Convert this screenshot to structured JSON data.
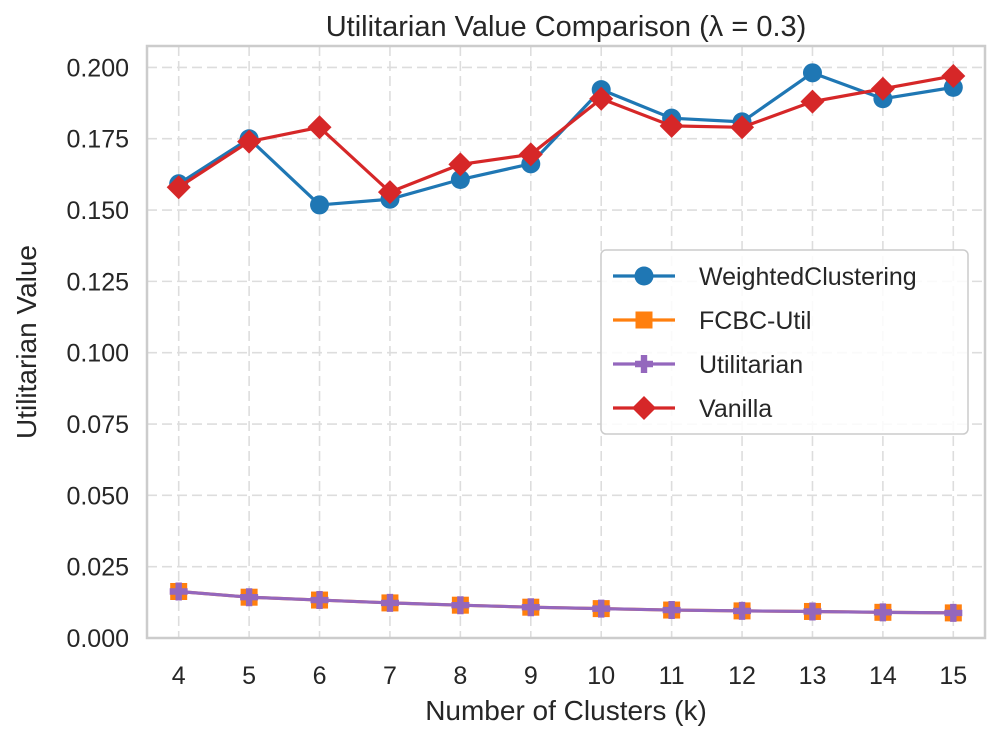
{
  "chart_data": {
    "type": "line",
    "title": "Utilitarian Value Comparison (λ = 0.3)",
    "xlabel": "Number of Clusters (k)",
    "ylabel": "Utilitarian Value",
    "x": [
      4,
      5,
      6,
      7,
      8,
      9,
      10,
      11,
      12,
      13,
      14,
      15
    ],
    "xlim": [
      3.55,
      15.45
    ],
    "ylim": [
      0.0,
      0.2075
    ],
    "yticks": [
      0.0,
      0.025,
      0.05,
      0.075,
      0.1,
      0.125,
      0.15,
      0.175,
      0.2
    ],
    "ytick_labels": [
      "0.000",
      "0.025",
      "0.050",
      "0.075",
      "0.100",
      "0.125",
      "0.150",
      "0.175",
      "0.200"
    ],
    "xtick_labels": [
      "4",
      "5",
      "6",
      "7",
      "8",
      "9",
      "10",
      "11",
      "12",
      "13",
      "14",
      "15"
    ],
    "grid": true,
    "legend_position": "center-right",
    "series": [
      {
        "name": "WeightedClustering",
        "color": "#1f77b4",
        "marker": "circle",
        "values": [
          0.1592,
          0.175,
          0.1518,
          0.1538,
          0.1607,
          0.1662,
          0.1922,
          0.1822,
          0.1809,
          0.1981,
          0.189,
          0.193
        ]
      },
      {
        "name": "FCBC-Util",
        "color": "#ff7f0e",
        "marker": "square",
        "values": [
          0.0163,
          0.0143,
          0.0133,
          0.0123,
          0.0115,
          0.0108,
          0.0103,
          0.0098,
          0.0095,
          0.0093,
          0.009,
          0.0088
        ]
      },
      {
        "name": "Utilitarian",
        "color": "#9467bd",
        "marker": "plus",
        "values": [
          0.0163,
          0.0143,
          0.0133,
          0.0123,
          0.0115,
          0.0108,
          0.0103,
          0.0098,
          0.0095,
          0.0093,
          0.009,
          0.0088
        ]
      },
      {
        "name": "Vanilla",
        "color": "#d62728",
        "marker": "diamond",
        "values": [
          0.158,
          0.174,
          0.179,
          0.1563,
          0.166,
          0.1695,
          0.189,
          0.1795,
          0.179,
          0.188,
          0.1925,
          0.197
        ]
      }
    ]
  }
}
